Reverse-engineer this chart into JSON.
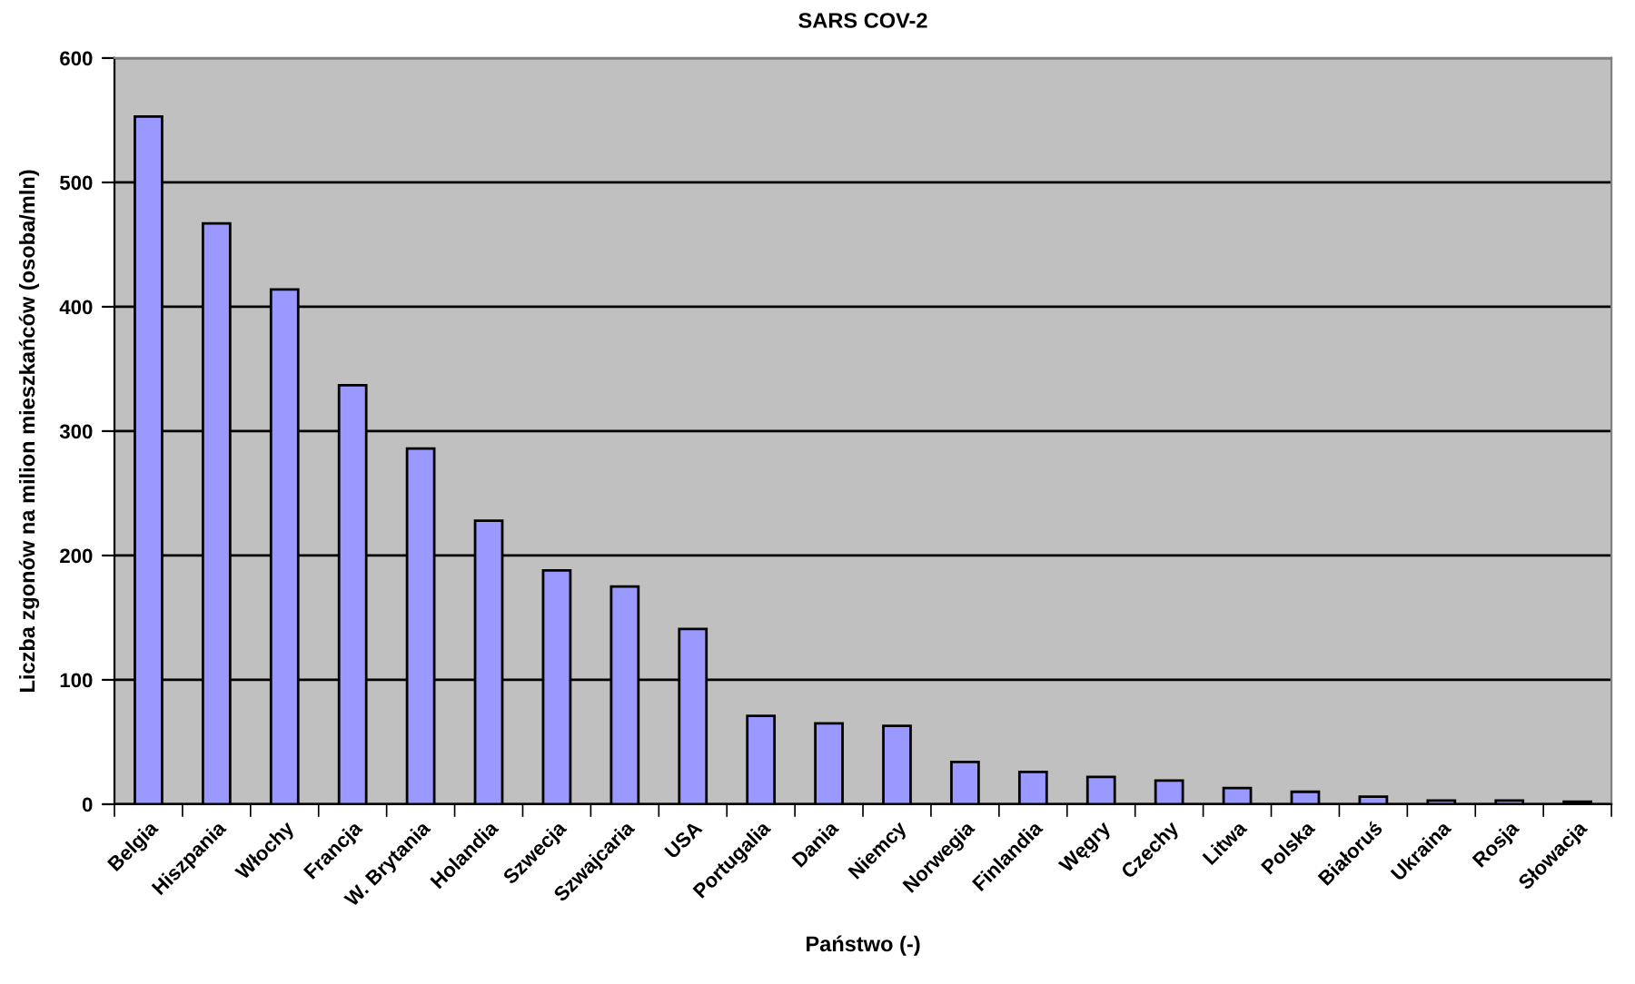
{
  "chart_data": {
    "type": "bar",
    "title": "SARS COV-2",
    "xlabel": "Państwo (-)",
    "ylabel": "Liczba zgonów na milion mieszkańców (osoba/mln)",
    "categories": [
      "Belgia",
      "Hiszpania",
      "Włochy",
      "Francja",
      "W. Brytania",
      "Holandia",
      "Szwecja",
      "Szwajcaria",
      "USA",
      "Portugalia",
      "Dania",
      "Niemcy",
      "Norwegia",
      "Finlandia",
      "Węgry",
      "Czechy",
      "Litwa",
      "Polska",
      "Białoruś",
      "Ukraina",
      "Rosja",
      "Słowacja"
    ],
    "values": [
      553,
      467,
      414,
      337,
      286,
      228,
      188,
      175,
      141,
      71,
      65,
      63,
      34,
      26,
      22,
      19,
      13,
      10,
      6,
      3,
      3,
      2
    ],
    "color": "#9999ff",
    "ylim": [
      0,
      600
    ],
    "yticks": [
      0,
      100,
      200,
      300,
      400,
      500,
      600
    ],
    "grid": "y"
  }
}
